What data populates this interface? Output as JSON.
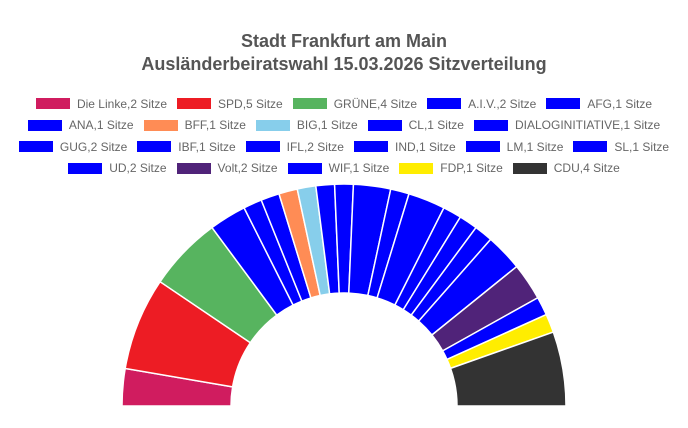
{
  "chart_data": {
    "type": "pie",
    "subtype": "parliament-semicircle",
    "title": "Stadt Frankfurt am Main",
    "subtitle": "Ausländerbeiratswahl 15.03.2026 Sitzverteilung",
    "legend_placement": "top",
    "series": [
      {
        "name": "Die Linke",
        "value": 2,
        "label": "Die Linke,2 Sitze",
        "color": "#d01c5f"
      },
      {
        "name": "SPD",
        "value": 5,
        "label": "SPD,5 Sitze",
        "color": "#ed1c24"
      },
      {
        "name": "GRÜNE",
        "value": 4,
        "label": "GRÜNE,4 Sitze",
        "color": "#57b45f"
      },
      {
        "name": "A.I.V.",
        "value": 2,
        "label": "A.I.V.,2 Sitze",
        "color": "#0000ff"
      },
      {
        "name": "AFG",
        "value": 1,
        "label": "AFG,1 Sitze",
        "color": "#0000ff"
      },
      {
        "name": "ANA",
        "value": 1,
        "label": "ANA,1 Sitze",
        "color": "#0000ff"
      },
      {
        "name": "BFF",
        "value": 1,
        "label": "BFF,1 Sitze",
        "color": "#ff8c55"
      },
      {
        "name": "BIG",
        "value": 1,
        "label": "BIG,1 Sitze",
        "color": "#87ceeb"
      },
      {
        "name": "CL",
        "value": 1,
        "label": "CL,1 Sitze",
        "color": "#0000ff"
      },
      {
        "name": "DIALOGINITIATIVE",
        "value": 1,
        "label": "DIALOGINITIATIVE,1 Sitze",
        "color": "#0000ff"
      },
      {
        "name": "GUG",
        "value": 2,
        "label": "GUG,2 Sitze",
        "color": "#0000ff"
      },
      {
        "name": "IBF",
        "value": 1,
        "label": "IBF,1 Sitze",
        "color": "#0000ff"
      },
      {
        "name": "IFL",
        "value": 2,
        "label": "IFL,2 Sitze",
        "color": "#0000ff"
      },
      {
        "name": "IND",
        "value": 1,
        "label": "IND,1 Sitze",
        "color": "#0000ff"
      },
      {
        "name": "LM",
        "value": 1,
        "label": "LM,1 Sitze",
        "color": "#0000ff"
      },
      {
        "name": "SL",
        "value": 1,
        "label": "SL,1 Sitze",
        "color": "#0000ff"
      },
      {
        "name": "UD",
        "value": 2,
        "label": "UD,2 Sitze",
        "color": "#0000ff"
      },
      {
        "name": "Volt",
        "value": 2,
        "label": "Volt,2 Sitze",
        "color": "#502379"
      },
      {
        "name": "WIF",
        "value": 1,
        "label": "WIF,1 Sitze",
        "color": "#0000ff"
      },
      {
        "name": "FDP",
        "value": 1,
        "label": "FDP,1 Sitze",
        "color": "#ffed00"
      },
      {
        "name": "CDU",
        "value": 4,
        "label": "CDU,4 Sitze",
        "color": "#333333"
      }
    ]
  }
}
